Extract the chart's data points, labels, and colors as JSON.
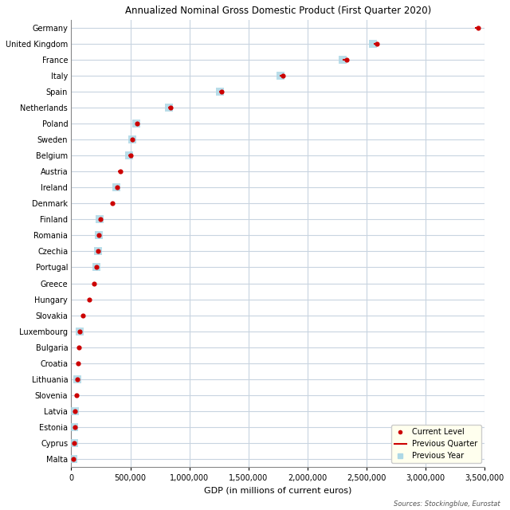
{
  "title": "Annualized Nominal Gross Domestic Product (First Quarter 2020)",
  "xlabel": "GDP (in millions of current euros)",
  "source": "Sources: Stockingblue, Eurostat",
  "countries": [
    "Germany",
    "United Kingdom",
    "France",
    "Italy",
    "Spain",
    "Netherlands",
    "Poland",
    "Sweden",
    "Belgium",
    "Austria",
    "Ireland",
    "Denmark",
    "Finland",
    "Romania",
    "Czechia",
    "Portugal",
    "Greece",
    "Hungary",
    "Slovakia",
    "Luxembourg",
    "Bulgaria",
    "Croatia",
    "Lithuania",
    "Slovenia",
    "Latvia",
    "Estonia",
    "Cyprus",
    "Malta"
  ],
  "current": [
    3440000,
    2590000,
    2330000,
    1790000,
    1270000,
    840000,
    560000,
    520000,
    500000,
    415000,
    390000,
    345000,
    245000,
    235000,
    230000,
    215000,
    195000,
    155000,
    100000,
    73000,
    62000,
    58000,
    52000,
    48000,
    34000,
    28000,
    22000,
    15000
  ],
  "prev_quarter": [
    3430000,
    2570000,
    2310000,
    1775000,
    1265000,
    835000,
    null,
    null,
    496000,
    410000,
    null,
    null,
    243000,
    233000,
    228000,
    213000,
    null,
    null,
    null,
    72500,
    null,
    null,
    51500,
    null,
    33500,
    27500,
    null,
    null
  ],
  "prev_year": [
    null,
    2555000,
    2300000,
    1770000,
    1260000,
    830000,
    550000,
    515000,
    493000,
    null,
    382000,
    null,
    242000,
    232000,
    227000,
    211000,
    null,
    null,
    null,
    72000,
    null,
    null,
    51000,
    null,
    33000,
    27000,
    21500,
    14500
  ],
  "current_color": "#cc0000",
  "prev_quarter_color": "#cc0000",
  "prev_year_color": "#add8e6",
  "bg_color": "#ffffff",
  "grid_color": "#c8d4e0",
  "legend_bg": "#ffffee",
  "xlim": [
    0,
    3500000
  ],
  "xticks": [
    0,
    500000,
    1000000,
    1500000,
    2000000,
    2500000,
    3000000,
    3500000
  ],
  "xtick_labels": [
    "0",
    "500,000",
    "1,000,000",
    "1,500,000",
    "2,000,000",
    "2,500,000",
    "3,000,000",
    "3,500,000"
  ]
}
